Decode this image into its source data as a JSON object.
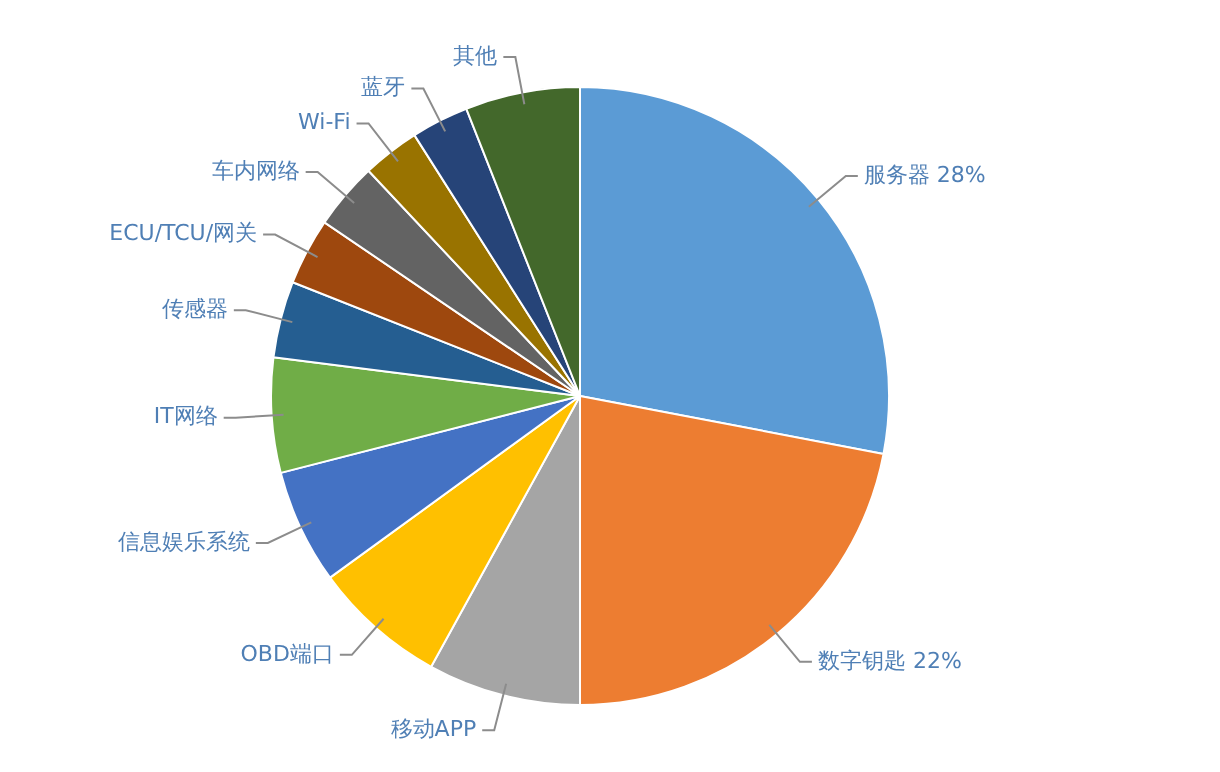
{
  "chart_data": {
    "type": "pie",
    "categories": [
      "服务器",
      "数字钥匙",
      "移动APP",
      "OBD端口",
      "信息娱乐系统",
      "IT网络",
      "传感器",
      "ECU/TCU/网关",
      "车内网络",
      "Wi-Fi",
      "蓝牙",
      "其他"
    ],
    "values": [
      28,
      22,
      8,
      7,
      6,
      6,
      4,
      3.5,
      3.5,
      3,
      3,
      6
    ],
    "colors": [
      "#5b9bd5",
      "#ed7d31",
      "#a5a5a5",
      "#ffc000",
      "#4472c4",
      "#70ad47",
      "#255e91",
      "#9e480e",
      "#636363",
      "#997300",
      "#264478",
      "#43682b"
    ],
    "value_labels": [
      "28%",
      "22%",
      null,
      null,
      null,
      null,
      null,
      null,
      null,
      null,
      null,
      null
    ],
    "legend": false
  }
}
